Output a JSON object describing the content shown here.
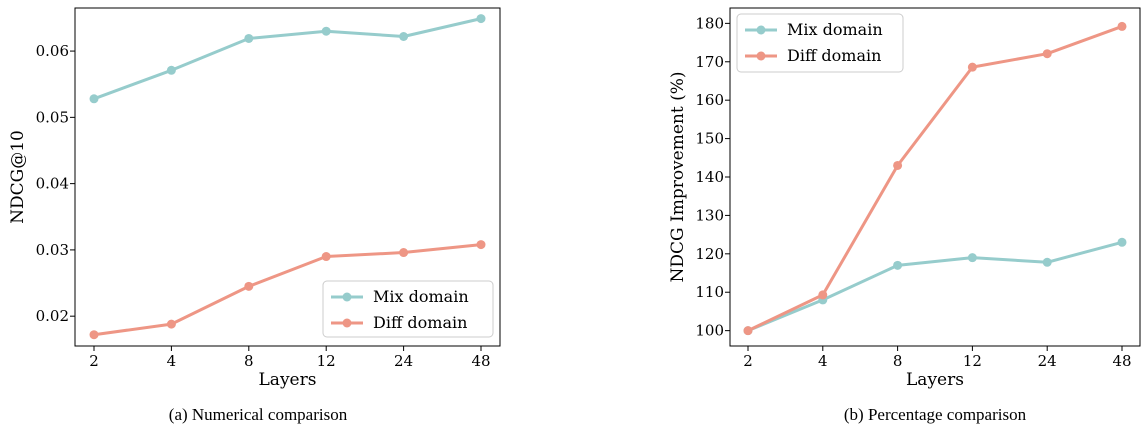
{
  "colors": {
    "mix": "#96cccc",
    "diff": "#ee9685"
  },
  "chart_data": [
    {
      "type": "line",
      "caption": "(a) Numerical comparison",
      "xlabel": "Layers",
      "ylabel": "NDCG@10",
      "categories": [
        "2",
        "4",
        "8",
        "12",
        "24",
        "48"
      ],
      "ylim": [
        0.0155,
        0.0665
      ],
      "yticks": [
        0.02,
        0.03,
        0.04,
        0.05,
        0.06
      ],
      "ytick_labels": [
        "0.02",
        "0.03",
        "0.04",
        "0.05",
        "0.06"
      ],
      "legend": "lower-right",
      "grid": false,
      "series": [
        {
          "name": "Mix domain",
          "color_key": "mix",
          "values": [
            0.0528,
            0.0571,
            0.0619,
            0.063,
            0.0622,
            0.0649
          ]
        },
        {
          "name": "Diff domain",
          "color_key": "diff",
          "values": [
            0.0172,
            0.0188,
            0.0245,
            0.029,
            0.0296,
            0.0308
          ]
        }
      ]
    },
    {
      "type": "line",
      "caption": "(b) Percentage comparison",
      "xlabel": "Layers",
      "ylabel": "NDCG Improvement (%)",
      "categories": [
        "2",
        "4",
        "8",
        "12",
        "24",
        "48"
      ],
      "ylim": [
        96,
        184
      ],
      "yticks": [
        100,
        110,
        120,
        130,
        140,
        150,
        160,
        170,
        180
      ],
      "ytick_labels": [
        "100",
        "110",
        "120",
        "130",
        "140",
        "150",
        "160",
        "170",
        "180"
      ],
      "legend": "upper-left",
      "grid": false,
      "series": [
        {
          "name": "Mix domain",
          "color_key": "mix",
          "values": [
            100,
            108,
            117,
            119,
            117.8,
            123
          ]
        },
        {
          "name": "Diff domain",
          "color_key": "diff",
          "values": [
            100,
            109.3,
            143,
            168.6,
            172.1,
            179.2
          ]
        }
      ]
    }
  ]
}
